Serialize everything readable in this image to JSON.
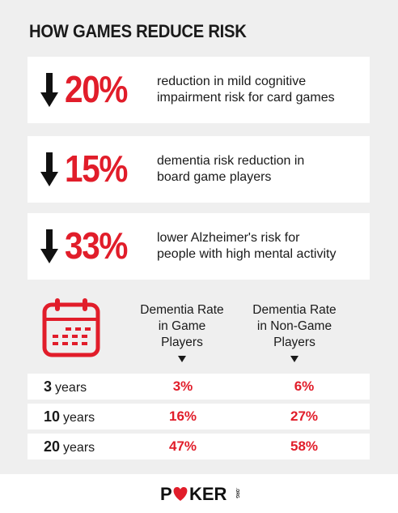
{
  "title": "HOW GAMES REDUCE RISK",
  "stats": [
    {
      "value": "20%",
      "desc_line1": "reduction in mild cognitive",
      "desc_line2": "impairment risk for card games"
    },
    {
      "value": "15%",
      "desc_line1": "dementia risk reduction in",
      "desc_line2": "board game players"
    },
    {
      "value": "33%",
      "desc_line1": "lower Alzheimer's risk for",
      "desc_line2": "people with high mental activity"
    }
  ],
  "table": {
    "col1_line1": "Dementia Rate",
    "col1_line2": "in Game",
    "col1_line3": "Players",
    "col2_line1": "Dementia Rate",
    "col2_line2": "in Non-Game",
    "col2_line3": "Players",
    "rows": [
      {
        "num": "3",
        "unit": "years",
        "game": "3%",
        "non_game": "6%"
      },
      {
        "num": "10",
        "unit": "years",
        "game": "16%",
        "non_game": "27%"
      },
      {
        "num": "20",
        "unit": "years",
        "game": "47%",
        "non_game": "58%"
      }
    ]
  },
  "logo": {
    "text_pre": "P",
    "text_post": "KER",
    "suffix": ".ORG"
  },
  "colors": {
    "accent": "#e11d2a",
    "panel": "#efefef",
    "text": "#1a1a1a"
  },
  "icons": {
    "stat_arrow": "arrow-down-icon",
    "calendar": "calendar-icon",
    "logo_heart": "heart-icon"
  },
  "chart_data": {
    "type": "table",
    "title": "HOW GAMES REDUCE RISK",
    "columns": [
      "Dementia Rate in Game Players",
      "Dementia Rate in Non-Game Players"
    ],
    "categories": [
      "3 years",
      "10 years",
      "20 years"
    ],
    "series": [
      {
        "name": "Dementia Rate in Game Players",
        "values": [
          3,
          16,
          47
        ]
      },
      {
        "name": "Dementia Rate in Non-Game Players",
        "values": [
          6,
          27,
          58
        ]
      }
    ],
    "unit": "%"
  }
}
